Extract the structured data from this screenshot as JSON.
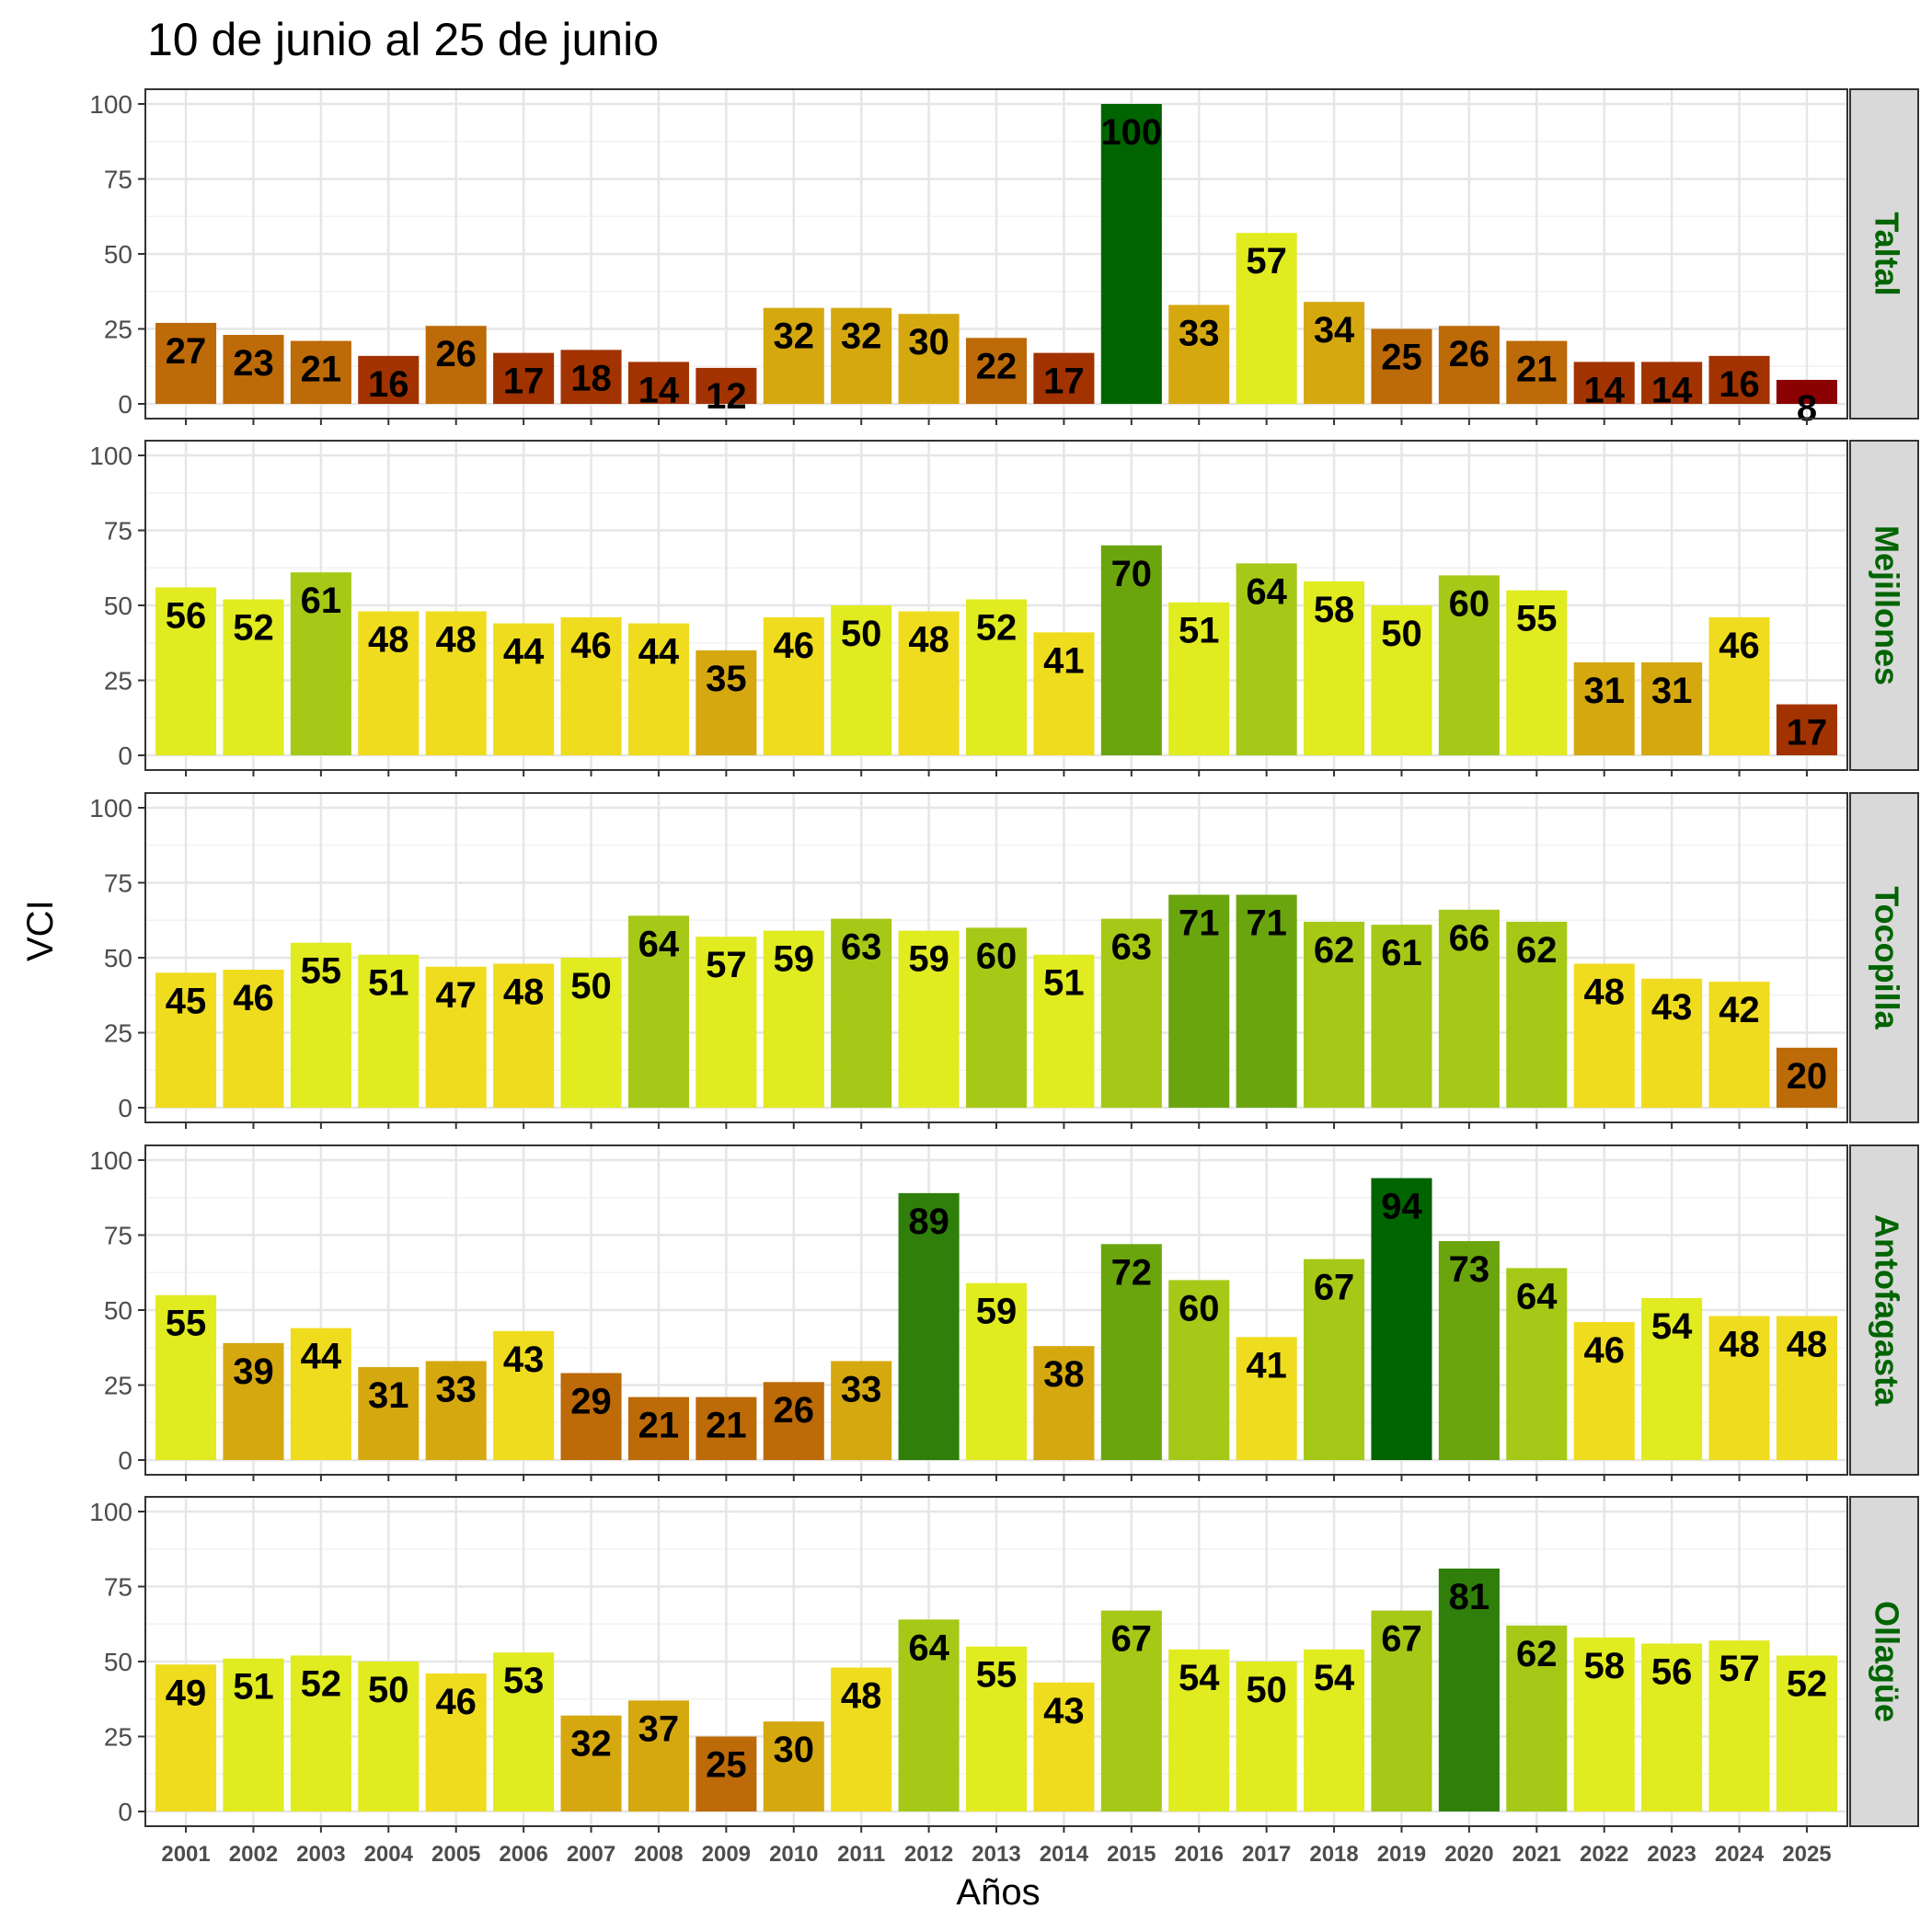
{
  "title": "10 de junio al 25 de junio",
  "colors": {
    "strip_text": "#006400",
    "strip_bg": "#d9d9d9",
    "grid_major": "#e6e6e6",
    "grid_minor": "#f2f2f2",
    "panel_border": "#333333",
    "palette": [
      "#8b0000",
      "#a23300",
      "#bd6a08",
      "#d6a810",
      "#efdc1e",
      "#e0eb20",
      "#a6c817",
      "#6aa50e",
      "#2f7f0a",
      "#006400"
    ]
  },
  "chart_data": {
    "type": "bar",
    "title": "10 de junio al 25 de junio",
    "xlabel": "Años",
    "ylabel": "VCI",
    "ylim": [
      0,
      100
    ],
    "yticks": [
      0,
      25,
      50,
      75,
      100
    ],
    "grid": true,
    "categories": [
      "2001",
      "2002",
      "2003",
      "2004",
      "2005",
      "2006",
      "2007",
      "2008",
      "2009",
      "2010",
      "2011",
      "2012",
      "2013",
      "2014",
      "2015",
      "2016",
      "2017",
      "2018",
      "2019",
      "2020",
      "2021",
      "2022",
      "2023",
      "2024",
      "2025"
    ],
    "series": [
      {
        "name": "Taltal",
        "values": [
          27,
          23,
          21,
          16,
          26,
          17,
          18,
          14,
          12,
          32,
          32,
          30,
          22,
          17,
          100,
          33,
          57,
          34,
          25,
          26,
          21,
          14,
          14,
          16,
          8
        ]
      },
      {
        "name": "Mejillones",
        "values": [
          56,
          52,
          61,
          48,
          48,
          44,
          46,
          44,
          35,
          46,
          50,
          48,
          52,
          41,
          70,
          51,
          64,
          58,
          50,
          60,
          55,
          31,
          31,
          46,
          17
        ]
      },
      {
        "name": "Tocopilla",
        "values": [
          45,
          46,
          55,
          51,
          47,
          48,
          50,
          64,
          57,
          59,
          63,
          59,
          60,
          51,
          63,
          71,
          71,
          62,
          61,
          66,
          62,
          48,
          43,
          42,
          20
        ]
      },
      {
        "name": "Antofagasta",
        "values": [
          55,
          39,
          44,
          31,
          33,
          43,
          29,
          21,
          21,
          26,
          33,
          89,
          59,
          38,
          72,
          60,
          41,
          67,
          94,
          73,
          64,
          46,
          54,
          48,
          48
        ]
      },
      {
        "name": "Ollagüe",
        "values": [
          49,
          51,
          52,
          50,
          46,
          53,
          32,
          37,
          25,
          30,
          48,
          64,
          55,
          43,
          67,
          54,
          50,
          54,
          67,
          81,
          62,
          58,
          56,
          57,
          52
        ]
      }
    ]
  }
}
